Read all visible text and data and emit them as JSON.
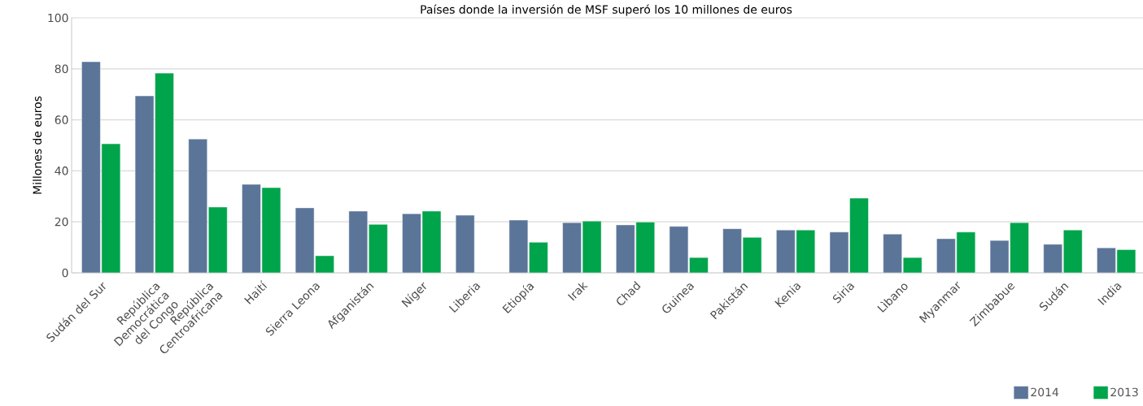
{
  "chart_data": {
    "type": "bar",
    "title": "Países donde la inversión de MSF superó los 10 millones de euros",
    "ylabel": "Millones de euros",
    "categories": [
      "Sudán del Sur",
      "República Democrática del Congo",
      "República Centroafricana",
      "Haití",
      "Sierra Leona",
      "Afganistán",
      "Níger",
      "Liberia",
      "Etiopía",
      "Irak",
      "Chad",
      "Guinea",
      "Pakistán",
      "Kenia",
      "Siria",
      "Lìbano",
      "Myanmar",
      "Zimbabue",
      "Sudán",
      "India"
    ],
    "series": [
      {
        "name": "2014",
        "color": "#5b7599",
        "values": [
          82.8,
          69.4,
          52.5,
          34.7,
          25.5,
          24.2,
          23.2,
          22.6,
          20.7,
          19.7,
          18.8,
          18.2,
          17.3,
          16.8,
          16.0,
          15.2,
          13.4,
          12.7,
          11.2,
          9.8
        ]
      },
      {
        "name": "2013",
        "color": "#00a44b",
        "values": [
          50.6,
          78.3,
          25.8,
          33.4,
          6.7,
          19.0,
          24.2,
          null,
          12.0,
          20.3,
          19.9,
          6.0,
          13.9,
          16.8,
          29.3,
          6.0,
          16.0,
          19.7,
          16.8,
          9.1
        ]
      }
    ],
    "ylim": [
      0,
      100
    ],
    "yticks": [
      0,
      20,
      40,
      60,
      80,
      100
    ],
    "grid": "y",
    "legend": "bottom right"
  }
}
